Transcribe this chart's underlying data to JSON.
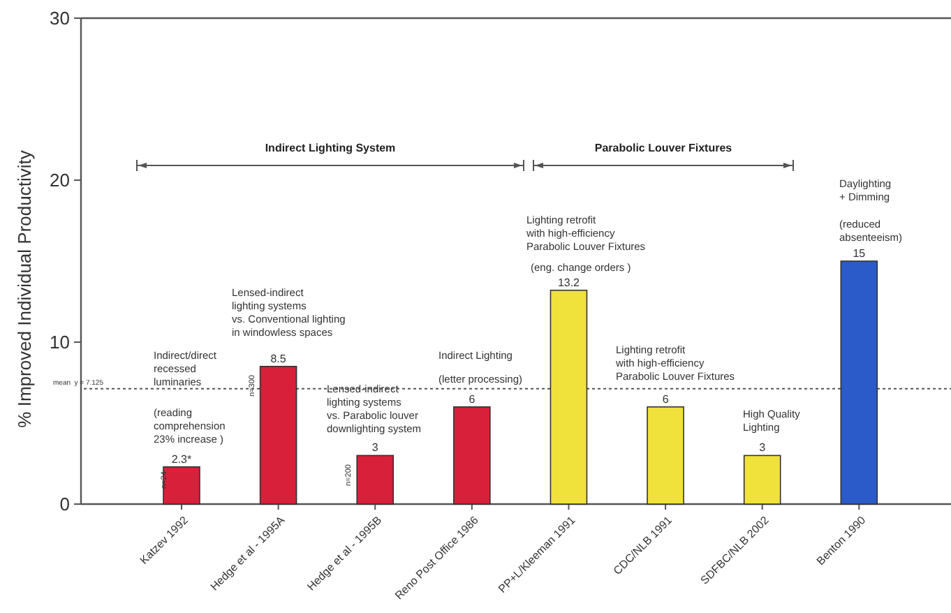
{
  "chart_data": {
    "type": "bar",
    "ylabel": "% Improved Individual Productivity",
    "categories": [
      "Katzev 1992",
      "Hedge et al - 1995A",
      "Hedge et al - 1995B",
      "Reno Post Office 1986",
      "PP+L/Kleeman 1991",
      "CDC/NLB 1991",
      "SDFBC/NLB 2002",
      "Benton 1990"
    ],
    "values": [
      2.3,
      8.5,
      3,
      6,
      13.2,
      6,
      3,
      15
    ],
    "colors": [
      "#d8203a",
      "#d8203a",
      "#d8203a",
      "#d8203a",
      "#f0e23a",
      "#f0e23a",
      "#f0e23a",
      "#2a5bc8"
    ],
    "value_labels": [
      "2.3*",
      "8.5",
      "3",
      "6",
      "13.2",
      "6",
      "3",
      "15"
    ],
    "ylim": [
      0,
      30
    ],
    "yticks": [
      0,
      10,
      20,
      30
    ],
    "ref_lines": [
      {
        "axis": "y",
        "value": 7.125,
        "label": "mean  y = 7.125",
        "line_style": "dotted",
        "color": "#555555"
      }
    ],
    "annotations": [
      "Indirect Lighting System",
      "Parabolic Louver Fixtures",
      "n=24",
      "n=300",
      "n=200",
      "Indirect/direct\nrecessed\nluminaries",
      "(reading\ncomprehension\n23% increase )",
      "Lensed-indirect\nlighting systems\nvs. Conventional lighting\nin windowless spaces",
      "Lensed-indirect\nlighting systems\nvs. Parabolic louver\ndownlighting system",
      "Indirect Lighting",
      "(letter processing)",
      "Lighting retrofit\nwith high-efficiency\nParabolic Louver Fixtures",
      "(eng. change orders )",
      "Lighting retrofit\nwith high-efficiency\nParabolic Louver Fixtures",
      "High Quality\nLighting",
      "Daylighting\n+ Dimming",
      "(reduced\nabsenteeism)"
    ]
  }
}
